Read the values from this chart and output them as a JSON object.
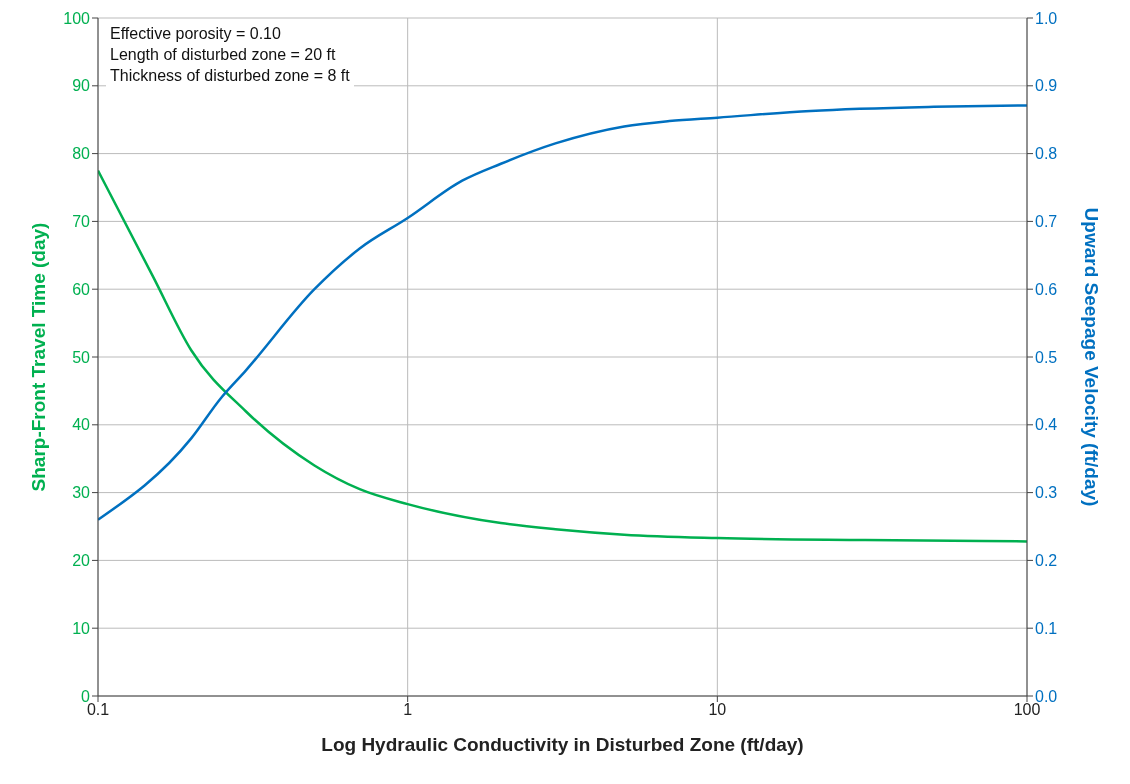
{
  "chart_data": {
    "type": "line",
    "xlabel": "Log Hydraulic Conductivity in Disturbed Zone (ft/day)",
    "ylabel": "Sharp-Front Travel Time (day)",
    "y2label": "Upward Seepage Velocity (ft/day)",
    "annotations": [
      "Effective porosity = 0.10",
      "Length of disturbed zone = 20 ft",
      "Thickness of disturbed zone = 8 ft"
    ],
    "log": "x",
    "grid": true,
    "marker": "none",
    "line_style": "solid",
    "xlim": [
      0.1,
      100
    ],
    "xticks": [
      0.1,
      1,
      10,
      100
    ],
    "ylim": [
      0,
      100
    ],
    "yticks": [
      0,
      10,
      20,
      30,
      40,
      50,
      60,
      70,
      80,
      90,
      100
    ],
    "y2lim": [
      0,
      1
    ],
    "y2ticks": [
      {
        "value": 0,
        "label": "0.0"
      },
      {
        "value": 0.1,
        "label": "0.1"
      },
      {
        "value": 0.2,
        "label": "0.2"
      },
      {
        "value": 0.3,
        "label": "0.3"
      },
      {
        "value": 0.4,
        "label": "0.4"
      },
      {
        "value": 0.5,
        "label": "0.5"
      },
      {
        "value": 0.6,
        "label": "0.6"
      },
      {
        "value": 0.7,
        "label": "0.7"
      },
      {
        "value": 0.8,
        "label": "0.8"
      },
      {
        "value": 0.9,
        "label": "0.9"
      },
      {
        "value": 1,
        "label": "1.0"
      }
    ],
    "series": [
      {
        "color": "#00b050",
        "x": [
          0.1,
          0.15,
          0.2,
          0.3,
          0.5,
          0.7,
          1,
          2,
          3,
          5,
          10,
          30,
          100
        ],
        "values": [
          77.5,
          62,
          51,
          42,
          34,
          30.5,
          28.3,
          25.5,
          24.6,
          23.8,
          23.3,
          23,
          22.8
        ]
      },
      {
        "color": "#0070c0",
        "axis": "y2",
        "x": [
          0.1,
          0.2,
          0.25,
          0.3,
          0.5,
          0.7,
          1,
          1.5,
          2,
          3,
          5,
          7,
          10,
          20,
          50,
          100
        ],
        "values": [
          0.26,
          0.38,
          0.44,
          0.48,
          0.6,
          0.66,
          0.705,
          0.76,
          0.785,
          0.815,
          0.84,
          0.848,
          0.853,
          0.863,
          0.869,
          0.871
        ]
      }
    ]
  }
}
